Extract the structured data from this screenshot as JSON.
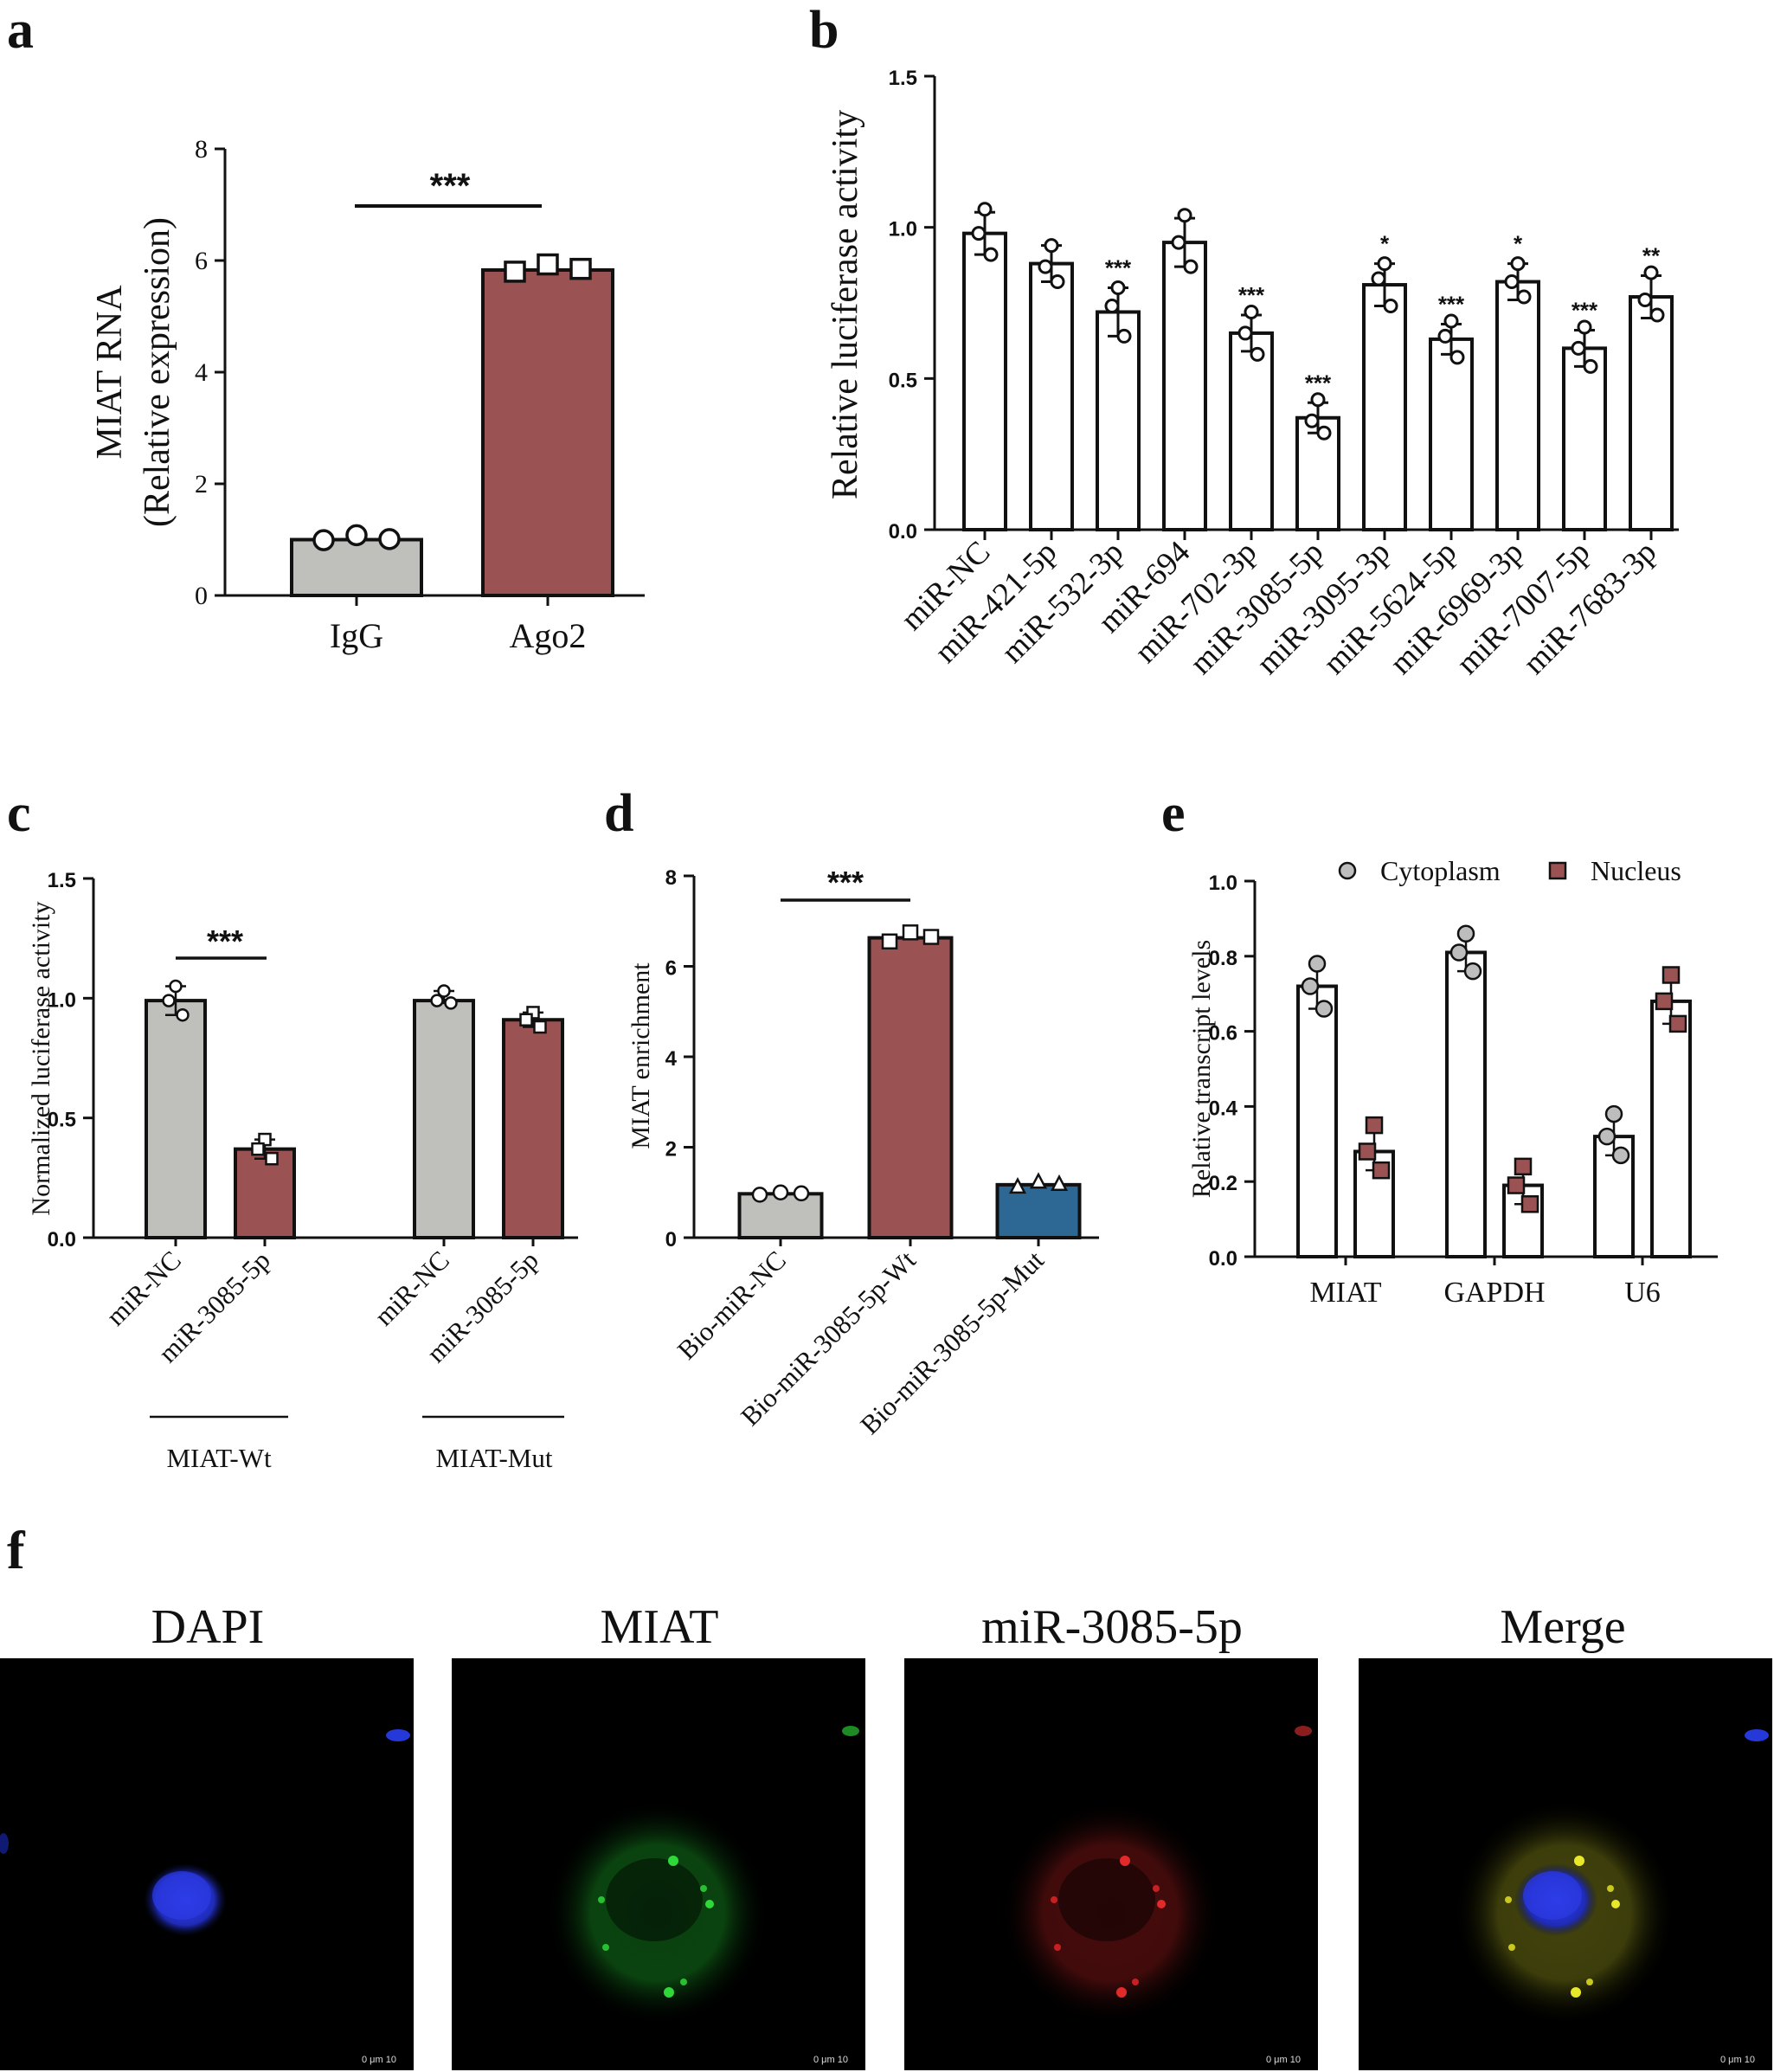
{
  "panels": {
    "a": "a",
    "b": "b",
    "c": "c",
    "d": "d",
    "e": "e",
    "f": "f"
  },
  "colors": {
    "gray": "#bfc0bb",
    "red": "#9b5252",
    "blue": "#2c6893",
    "white": "#ffffff",
    "yellow": "#c8c81e",
    "green": "#22a52a",
    "dred": "#c81e1e",
    "dblue": "#2a3ad2"
  },
  "chart_data": [
    {
      "id": "a",
      "type": "bar",
      "ylabel_line1": "MIAT RNA",
      "ylabel_line2": "(Relative expression)",
      "ylim": [
        0,
        8
      ],
      "yticks": [
        "0",
        "2",
        "4",
        "6",
        "8"
      ],
      "categories": [
        "IgG",
        "Ago2"
      ],
      "values": [
        1.0,
        5.83
      ],
      "points": [
        [
          0.99,
          1.08,
          1.01
        ],
        [
          5.8,
          5.93,
          5.85
        ]
      ],
      "bar_colors": [
        "#bfc0bb",
        "#9b5252"
      ],
      "markers": [
        "circle",
        "square"
      ],
      "significance": "***"
    },
    {
      "id": "b",
      "type": "bar",
      "ylabel": "Relative luciferase activity",
      "ylim": [
        0,
        1.5
      ],
      "yticks": [
        "0.0",
        "0.5",
        "1.0",
        "1.5"
      ],
      "categories": [
        "miR-NC",
        "miR-421-5p",
        "miR-532-3p",
        "miR-694",
        "miR-702-3p",
        "miR-3085-5p",
        "miR-3095-3p",
        "miR-5624-5p",
        "miR-6969-3p",
        "miR-7007-5p",
        "miR-7683-3p"
      ],
      "values": [
        0.98,
        0.88,
        0.72,
        0.95,
        0.65,
        0.37,
        0.81,
        0.63,
        0.82,
        0.6,
        0.77
      ],
      "errors": [
        0.07,
        0.06,
        0.08,
        0.08,
        0.06,
        0.05,
        0.07,
        0.05,
        0.06,
        0.06,
        0.07
      ],
      "points": [
        [
          1.06,
          0.98,
          0.91
        ],
        [
          0.94,
          0.87,
          0.82
        ],
        [
          0.8,
          0.74,
          0.64
        ],
        [
          1.04,
          0.95,
          0.87
        ],
        [
          0.72,
          0.65,
          0.58
        ],
        [
          0.43,
          0.36,
          0.32
        ],
        [
          0.88,
          0.83,
          0.74
        ],
        [
          0.69,
          0.64,
          0.57
        ],
        [
          0.88,
          0.82,
          0.77
        ],
        [
          0.67,
          0.6,
          0.54
        ],
        [
          0.85,
          0.76,
          0.71
        ]
      ],
      "significance": [
        "",
        "",
        "***",
        "",
        "***",
        "***",
        "*",
        "***",
        "*",
        "***",
        "**"
      ]
    },
    {
      "id": "c",
      "type": "bar",
      "ylabel": "Normalized luciferase activity",
      "ylim": [
        0,
        1.5
      ],
      "yticks": [
        "0.0",
        "0.5",
        "1.0",
        "1.5"
      ],
      "categories": [
        "miR-NC",
        "miR-3085-5p",
        "miR-NC",
        "miR-3085-5p"
      ],
      "groups": [
        "MIAT-Wt",
        "MIAT-Mut"
      ],
      "values": [
        0.99,
        0.37,
        0.99,
        0.91
      ],
      "points": [
        [
          1.05,
          0.99,
          0.93
        ],
        [
          0.41,
          0.37,
          0.33
        ],
        [
          1.03,
          0.99,
          0.98
        ],
        [
          0.94,
          0.91,
          0.88
        ]
      ],
      "bar_colors": [
        "#bfc0bb",
        "#9b5252",
        "#bfc0bb",
        "#9b5252"
      ],
      "significance": "***"
    },
    {
      "id": "d",
      "type": "bar",
      "ylabel": "MIAT enrichment",
      "ylim": [
        0,
        8
      ],
      "yticks": [
        "0",
        "2",
        "4",
        "6",
        "8"
      ],
      "categories": [
        "Bio-miR-NC",
        "Bio-miR-3085-5p-Wt",
        "Bio-miR-3085-5p-Mut"
      ],
      "values": [
        0.97,
        6.63,
        1.17
      ],
      "points": [
        [
          0.95,
          1.0,
          0.98
        ],
        [
          6.55,
          6.75,
          6.65
        ],
        [
          1.12,
          1.23,
          1.18
        ]
      ],
      "bar_colors": [
        "#bfc0bb",
        "#9b5252",
        "#2c6893"
      ],
      "markers": [
        "circle",
        "square",
        "triangle"
      ],
      "significance": "***"
    },
    {
      "id": "e",
      "type": "bar",
      "ylabel": "Relative transcript levels",
      "ylim": [
        0,
        1.0
      ],
      "yticks": [
        "0.0",
        "0.2",
        "0.4",
        "0.6",
        "0.8",
        "1.0"
      ],
      "categories": [
        "MIAT",
        "GAPDH",
        "U6"
      ],
      "series": [
        {
          "name": "Cytoplasm",
          "values": [
            0.72,
            0.81,
            0.32
          ],
          "points": [
            [
              0.78,
              0.72,
              0.66
            ],
            [
              0.86,
              0.81,
              0.76
            ],
            [
              0.38,
              0.32,
              0.27
            ]
          ]
        },
        {
          "name": "Nucleus",
          "values": [
            0.28,
            0.19,
            0.68
          ],
          "points": [
            [
              0.35,
              0.28,
              0.23
            ],
            [
              0.24,
              0.19,
              0.14
            ],
            [
              0.75,
              0.68,
              0.62
            ]
          ]
        }
      ]
    }
  ],
  "images": {
    "titles": [
      "DAPI",
      "MIAT",
      "miR-3085-5p",
      "Merge"
    ],
    "scalebar": "0  μm 10"
  }
}
